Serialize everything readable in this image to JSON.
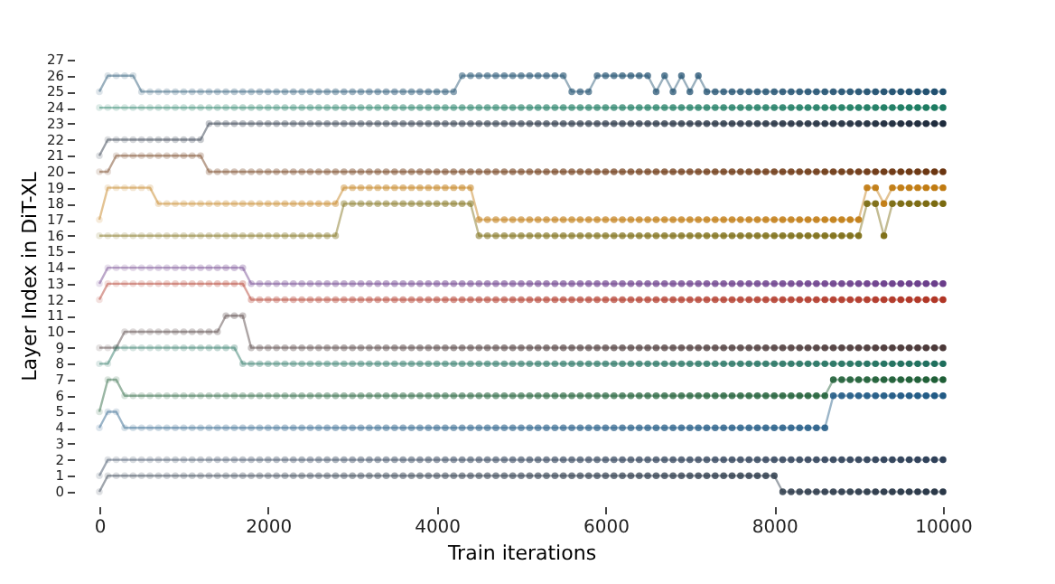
{
  "chart_data": {
    "type": "line",
    "xlabel": "Train iterations",
    "ylabel": "Layer Index in DiT-XL",
    "xlim": [
      0,
      10000
    ],
    "xticks": [
      0,
      2000,
      4000,
      6000,
      8000,
      10000
    ],
    "ylim": [
      0,
      27
    ],
    "yticks": [
      0,
      1,
      2,
      3,
      4,
      5,
      6,
      7,
      8,
      9,
      10,
      11,
      12,
      13,
      14,
      15,
      16,
      17,
      18,
      19,
      20,
      21,
      22,
      23,
      24,
      25,
      26,
      27
    ],
    "grid": false,
    "legend": false,
    "marker": "circle",
    "line_style": "solid",
    "x": [
      0,
      100,
      200,
      300,
      400,
      500,
      600,
      700,
      800,
      900,
      1000,
      1100,
      1200,
      1300,
      1400,
      1500,
      1600,
      1700,
      1800,
      1900,
      2000,
      2100,
      2200,
      2300,
      2400,
      2500,
      2600,
      2700,
      2800,
      2900,
      3000,
      3100,
      3200,
      3300,
      3400,
      3500,
      3600,
      3700,
      3800,
      3900,
      4000,
      4100,
      4200,
      4300,
      4400,
      4500,
      4600,
      4700,
      4800,
      4900,
      5000,
      5100,
      5200,
      5300,
      5400,
      5500,
      5600,
      5700,
      5800,
      5900,
      6000,
      6100,
      6200,
      6300,
      6400,
      6500,
      6600,
      6700,
      6800,
      6900,
      7000,
      7100,
      7200,
      7300,
      7400,
      7500,
      7600,
      7700,
      7800,
      7900,
      8000,
      8100,
      8200,
      8300,
      8400,
      8500,
      8600,
      8700,
      8800,
      8900,
      9000,
      9100,
      9200,
      9300,
      9400,
      9500,
      9600,
      9700,
      9800,
      9900,
      10000
    ],
    "series": [
      {
        "color": "#1f4f6f",
        "values": [
          25,
          26,
          26,
          26,
          26,
          25,
          25,
          25,
          25,
          25,
          25,
          25,
          25,
          25,
          25,
          25,
          25,
          25,
          25,
          25,
          25,
          25,
          25,
          25,
          25,
          25,
          25,
          25,
          25,
          25,
          25,
          25,
          25,
          25,
          25,
          25,
          25,
          25,
          25,
          25,
          25,
          25,
          25,
          26,
          26,
          26,
          26,
          26,
          26,
          26,
          26,
          26,
          26,
          26,
          26,
          26,
          25,
          25,
          25,
          26,
          26,
          26,
          26,
          26,
          26,
          26,
          25,
          26,
          25,
          26,
          25,
          26,
          25,
          25,
          25,
          25,
          25,
          25,
          25,
          25,
          25,
          25,
          25,
          25,
          25,
          25,
          25,
          25,
          25,
          25,
          25,
          25,
          25,
          25,
          25,
          25,
          25,
          25,
          25,
          25,
          25
        ]
      },
      {
        "color": "#1a7a60",
        "values": [
          24,
          24,
          24,
          24,
          24,
          24,
          24,
          24,
          24,
          24,
          24,
          24,
          24,
          24,
          24,
          24,
          24,
          24,
          24,
          24,
          24,
          24,
          24,
          24,
          24,
          24,
          24,
          24,
          24,
          24,
          24,
          24,
          24,
          24,
          24,
          24,
          24,
          24,
          24,
          24,
          24,
          24,
          24,
          24,
          24,
          24,
          24,
          24,
          24,
          24,
          24,
          24,
          24,
          24,
          24,
          24,
          24,
          24,
          24,
          24,
          24,
          24,
          24,
          24,
          24,
          24,
          24,
          24,
          24,
          24,
          24,
          24,
          24,
          24,
          24,
          24,
          24,
          24,
          24,
          24,
          24,
          24,
          24,
          24,
          24,
          24,
          24,
          24,
          24,
          24,
          24,
          24,
          24,
          24,
          24,
          24,
          24,
          24,
          24,
          24,
          24
        ]
      },
      {
        "color": "#1e2b3c",
        "values": [
          21,
          22,
          22,
          22,
          22,
          22,
          22,
          22,
          22,
          22,
          22,
          22,
          22,
          23,
          23,
          23,
          23,
          23,
          23,
          23,
          23,
          23,
          23,
          23,
          23,
          23,
          23,
          23,
          23,
          23,
          23,
          23,
          23,
          23,
          23,
          23,
          23,
          23,
          23,
          23,
          23,
          23,
          23,
          23,
          23,
          23,
          23,
          23,
          23,
          23,
          23,
          23,
          23,
          23,
          23,
          23,
          23,
          23,
          23,
          23,
          23,
          23,
          23,
          23,
          23,
          23,
          23,
          23,
          23,
          23,
          23,
          23,
          23,
          23,
          23,
          23,
          23,
          23,
          23,
          23,
          23,
          23,
          23,
          23,
          23,
          23,
          23,
          23,
          23,
          23,
          23,
          23,
          23,
          23,
          23,
          23,
          23,
          23,
          23,
          23,
          23
        ]
      },
      {
        "color": "#6b3510",
        "values": [
          20,
          20,
          21,
          21,
          21,
          21,
          21,
          21,
          21,
          21,
          21,
          21,
          21,
          20,
          20,
          20,
          20,
          20,
          20,
          20,
          20,
          20,
          20,
          20,
          20,
          20,
          20,
          20,
          20,
          20,
          20,
          20,
          20,
          20,
          20,
          20,
          20,
          20,
          20,
          20,
          20,
          20,
          20,
          20,
          20,
          20,
          20,
          20,
          20,
          20,
          20,
          20,
          20,
          20,
          20,
          20,
          20,
          20,
          20,
          20,
          20,
          20,
          20,
          20,
          20,
          20,
          20,
          20,
          20,
          20,
          20,
          20,
          20,
          20,
          20,
          20,
          20,
          20,
          20,
          20,
          20,
          20,
          20,
          20,
          20,
          20,
          20,
          20,
          20,
          20,
          20,
          20,
          20,
          20,
          20,
          20,
          20,
          20,
          20,
          20,
          20
        ]
      },
      {
        "color": "#c07a10",
        "values": [
          17,
          19,
          19,
          19,
          19,
          19,
          19,
          18,
          18,
          18,
          18,
          18,
          18,
          18,
          18,
          18,
          18,
          18,
          18,
          18,
          18,
          18,
          18,
          18,
          18,
          18,
          18,
          18,
          18,
          19,
          19,
          19,
          19,
          19,
          19,
          19,
          19,
          19,
          19,
          19,
          19,
          19,
          19,
          19,
          19,
          17,
          17,
          17,
          17,
          17,
          17,
          17,
          17,
          17,
          17,
          17,
          17,
          17,
          17,
          17,
          17,
          17,
          17,
          17,
          17,
          17,
          17,
          17,
          17,
          17,
          17,
          17,
          17,
          17,
          17,
          17,
          17,
          17,
          17,
          17,
          17,
          17,
          17,
          17,
          17,
          17,
          17,
          17,
          17,
          17,
          17,
          19,
          19,
          18,
          19,
          19,
          19,
          19,
          19,
          19,
          19
        ]
      },
      {
        "color": "#7a6a10",
        "values": [
          16,
          16,
          16,
          16,
          16,
          16,
          16,
          16,
          16,
          16,
          16,
          16,
          16,
          16,
          16,
          16,
          16,
          16,
          16,
          16,
          16,
          16,
          16,
          16,
          16,
          16,
          16,
          16,
          16,
          18,
          18,
          18,
          18,
          18,
          18,
          18,
          18,
          18,
          18,
          18,
          18,
          18,
          18,
          18,
          18,
          16,
          16,
          16,
          16,
          16,
          16,
          16,
          16,
          16,
          16,
          16,
          16,
          16,
          16,
          16,
          16,
          16,
          16,
          16,
          16,
          16,
          16,
          16,
          16,
          16,
          16,
          16,
          16,
          16,
          16,
          16,
          16,
          16,
          16,
          16,
          16,
          16,
          16,
          16,
          16,
          16,
          16,
          16,
          16,
          16,
          16,
          18,
          18,
          16,
          18,
          18,
          18,
          18,
          18,
          18,
          18
        ]
      },
      {
        "color": "#6a3d8a",
        "values": [
          13,
          14,
          14,
          14,
          14,
          14,
          14,
          14,
          14,
          14,
          14,
          14,
          14,
          14,
          14,
          14,
          14,
          14,
          13,
          13,
          13,
          13,
          13,
          13,
          13,
          13,
          13,
          13,
          13,
          13,
          13,
          13,
          13,
          13,
          13,
          13,
          13,
          13,
          13,
          13,
          13,
          13,
          13,
          13,
          13,
          13,
          13,
          13,
          13,
          13,
          13,
          13,
          13,
          13,
          13,
          13,
          13,
          13,
          13,
          13,
          13,
          13,
          13,
          13,
          13,
          13,
          13,
          13,
          13,
          13,
          13,
          13,
          13,
          13,
          13,
          13,
          13,
          13,
          13,
          13,
          13,
          13,
          13,
          13,
          13,
          13,
          13,
          13,
          13,
          13,
          13,
          13,
          13,
          13,
          13,
          13,
          13,
          13,
          13,
          13,
          13
        ]
      },
      {
        "color": "#b03525",
        "values": [
          12,
          13,
          13,
          13,
          13,
          13,
          13,
          13,
          13,
          13,
          13,
          13,
          13,
          13,
          13,
          13,
          13,
          13,
          12,
          12,
          12,
          12,
          12,
          12,
          12,
          12,
          12,
          12,
          12,
          12,
          12,
          12,
          12,
          12,
          12,
          12,
          12,
          12,
          12,
          12,
          12,
          12,
          12,
          12,
          12,
          12,
          12,
          12,
          12,
          12,
          12,
          12,
          12,
          12,
          12,
          12,
          12,
          12,
          12,
          12,
          12,
          12,
          12,
          12,
          12,
          12,
          12,
          12,
          12,
          12,
          12,
          12,
          12,
          12,
          12,
          12,
          12,
          12,
          12,
          12,
          12,
          12,
          12,
          12,
          12,
          12,
          12,
          12,
          12,
          12,
          12,
          12,
          12,
          12,
          12,
          12,
          12,
          12,
          12,
          12,
          12
        ]
      },
      {
        "color": "#4a3838",
        "values": [
          9,
          9,
          9,
          10,
          10,
          10,
          10,
          10,
          10,
          10,
          10,
          10,
          10,
          10,
          10,
          11,
          11,
          11,
          9,
          9,
          9,
          9,
          9,
          9,
          9,
          9,
          9,
          9,
          9,
          9,
          9,
          9,
          9,
          9,
          9,
          9,
          9,
          9,
          9,
          9,
          9,
          9,
          9,
          9,
          9,
          9,
          9,
          9,
          9,
          9,
          9,
          9,
          9,
          9,
          9,
          9,
          9,
          9,
          9,
          9,
          9,
          9,
          9,
          9,
          9,
          9,
          9,
          9,
          9,
          9,
          9,
          9,
          9,
          9,
          9,
          9,
          9,
          9,
          9,
          9,
          9,
          9,
          9,
          9,
          9,
          9,
          9,
          9,
          9,
          9,
          9,
          9,
          9,
          9,
          9,
          9,
          9,
          9,
          9,
          9,
          9
        ]
      },
      {
        "color": "#1e6e5c",
        "values": [
          8,
          8,
          9,
          9,
          9,
          9,
          9,
          9,
          9,
          9,
          9,
          9,
          9,
          9,
          9,
          9,
          9,
          8,
          8,
          8,
          8,
          8,
          8,
          8,
          8,
          8,
          8,
          8,
          8,
          8,
          8,
          8,
          8,
          8,
          8,
          8,
          8,
          8,
          8,
          8,
          8,
          8,
          8,
          8,
          8,
          8,
          8,
          8,
          8,
          8,
          8,
          8,
          8,
          8,
          8,
          8,
          8,
          8,
          8,
          8,
          8,
          8,
          8,
          8,
          8,
          8,
          8,
          8,
          8,
          8,
          8,
          8,
          8,
          8,
          8,
          8,
          8,
          8,
          8,
          8,
          8,
          8,
          8,
          8,
          8,
          8,
          8,
          8,
          8,
          8,
          8,
          8,
          8,
          8,
          8,
          8,
          8,
          8,
          8,
          8,
          8
        ]
      },
      {
        "color": "#1e5e36",
        "values": [
          5,
          7,
          7,
          6,
          6,
          6,
          6,
          6,
          6,
          6,
          6,
          6,
          6,
          6,
          6,
          6,
          6,
          6,
          6,
          6,
          6,
          6,
          6,
          6,
          6,
          6,
          6,
          6,
          6,
          6,
          6,
          6,
          6,
          6,
          6,
          6,
          6,
          6,
          6,
          6,
          6,
          6,
          6,
          6,
          6,
          6,
          6,
          6,
          6,
          6,
          6,
          6,
          6,
          6,
          6,
          6,
          6,
          6,
          6,
          6,
          6,
          6,
          6,
          6,
          6,
          6,
          6,
          6,
          6,
          6,
          6,
          6,
          6,
          6,
          6,
          6,
          6,
          6,
          6,
          6,
          6,
          6,
          6,
          6,
          6,
          6,
          6,
          7,
          7,
          7,
          7,
          7,
          7,
          7,
          7,
          7,
          7,
          7,
          7,
          7,
          7
        ]
      },
      {
        "color": "#215a85",
        "values": [
          4,
          5,
          5,
          4,
          4,
          4,
          4,
          4,
          4,
          4,
          4,
          4,
          4,
          4,
          4,
          4,
          4,
          4,
          4,
          4,
          4,
          4,
          4,
          4,
          4,
          4,
          4,
          4,
          4,
          4,
          4,
          4,
          4,
          4,
          4,
          4,
          4,
          4,
          4,
          4,
          4,
          4,
          4,
          4,
          4,
          4,
          4,
          4,
          4,
          4,
          4,
          4,
          4,
          4,
          4,
          4,
          4,
          4,
          4,
          4,
          4,
          4,
          4,
          4,
          4,
          4,
          4,
          4,
          4,
          4,
          4,
          4,
          4,
          4,
          4,
          4,
          4,
          4,
          4,
          4,
          4,
          4,
          4,
          4,
          4,
          4,
          4,
          6,
          6,
          6,
          6,
          6,
          6,
          6,
          6,
          6,
          6,
          6,
          6,
          6,
          6
        ]
      },
      {
        "color": "#2e4058",
        "values": [
          1,
          2,
          2,
          2,
          2,
          2,
          2,
          2,
          2,
          2,
          2,
          2,
          2,
          2,
          2,
          2,
          2,
          2,
          2,
          2,
          2,
          2,
          2,
          2,
          2,
          2,
          2,
          2,
          2,
          2,
          2,
          2,
          2,
          2,
          2,
          2,
          2,
          2,
          2,
          2,
          2,
          2,
          2,
          2,
          2,
          2,
          2,
          2,
          2,
          2,
          2,
          2,
          2,
          2,
          2,
          2,
          2,
          2,
          2,
          2,
          2,
          2,
          2,
          2,
          2,
          2,
          2,
          2,
          2,
          2,
          2,
          2,
          2,
          2,
          2,
          2,
          2,
          2,
          2,
          2,
          2,
          2,
          2,
          2,
          2,
          2,
          2,
          2,
          2,
          2,
          2,
          2,
          2,
          2,
          2,
          2,
          2,
          2,
          2,
          2,
          2
        ]
      },
      {
        "color": "#2a3848",
        "values": [
          0,
          1,
          1,
          1,
          1,
          1,
          1,
          1,
          1,
          1,
          1,
          1,
          1,
          1,
          1,
          1,
          1,
          1,
          1,
          1,
          1,
          1,
          1,
          1,
          1,
          1,
          1,
          1,
          1,
          1,
          1,
          1,
          1,
          1,
          1,
          1,
          1,
          1,
          1,
          1,
          1,
          1,
          1,
          1,
          1,
          1,
          1,
          1,
          1,
          1,
          1,
          1,
          1,
          1,
          1,
          1,
          1,
          1,
          1,
          1,
          1,
          1,
          1,
          1,
          1,
          1,
          1,
          1,
          1,
          1,
          1,
          1,
          1,
          1,
          1,
          1,
          1,
          1,
          1,
          1,
          1,
          0,
          0,
          0,
          0,
          0,
          0,
          0,
          0,
          0,
          0,
          0,
          0,
          0,
          0,
          0,
          0,
          0,
          0,
          0,
          0
        ]
      }
    ]
  }
}
